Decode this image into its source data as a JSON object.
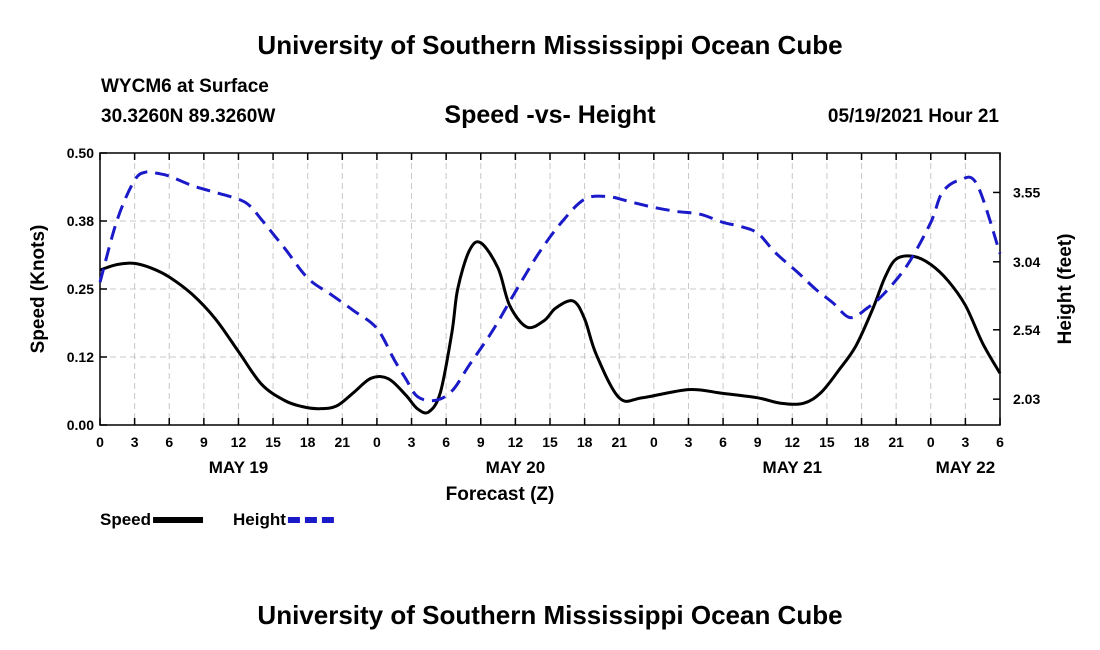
{
  "header": {
    "title_top": "University of Southern Mississippi Ocean Cube",
    "title_bottom": "University of Southern Mississippi Ocean Cube",
    "station": "WYCM6 at Surface",
    "coords": "30.3260N  89.3260W",
    "plot_title": "Speed -vs- Height",
    "datetime": "05/19/2021 Hour 21"
  },
  "chart_data": {
    "type": "line",
    "title": "Speed -vs- Height",
    "xlabel": "Forecast (Z)",
    "ylabel_left": "Speed (Knots)",
    "ylabel_right": "Height (feet)",
    "x_unit": "hours from May 19 00Z",
    "xlim": [
      0,
      78
    ],
    "ylim_left": [
      0,
      0.5
    ],
    "ylim_right": [
      1.84,
      3.84
    ],
    "x_ticks": [
      0,
      3,
      6,
      9,
      12,
      15,
      18,
      21,
      24,
      27,
      30,
      33,
      36,
      39,
      42,
      45,
      48,
      51,
      54,
      57,
      60,
      63,
      66,
      69,
      72,
      75,
      78
    ],
    "x_tick_labels": [
      "0",
      "3",
      "6",
      "9",
      "12",
      "15",
      "18",
      "21",
      "0",
      "3",
      "6",
      "9",
      "12",
      "15",
      "18",
      "21",
      "0",
      "3",
      "6",
      "9",
      "12",
      "15",
      "18",
      "21",
      "0",
      "3",
      "6"
    ],
    "day_labels": [
      {
        "x": 12,
        "label": "MAY 19"
      },
      {
        "x": 36,
        "label": "MAY 20"
      },
      {
        "x": 60,
        "label": "MAY 21"
      },
      {
        "x": 75,
        "label": "MAY 22"
      }
    ],
    "y_left_ticks": [
      {
        "value": 0.0,
        "label": "0.00"
      },
      {
        "value": 0.125,
        "label": "0.12"
      },
      {
        "value": 0.25,
        "label": "0.25"
      },
      {
        "value": 0.375,
        "label": "0.38"
      },
      {
        "value": 0.5,
        "label": "0.50"
      }
    ],
    "y_right_ticks": [
      {
        "value": 2.03,
        "label": "2.03"
      },
      {
        "value": 2.54,
        "label": "2.54"
      },
      {
        "value": 3.04,
        "label": "3.04"
      },
      {
        "value": 3.55,
        "label": "3.55"
      }
    ],
    "series": [
      {
        "name": "Speed",
        "axis": "left",
        "color": "#000000",
        "dash": "solid",
        "x": [
          0,
          1.5,
          3,
          4.5,
          6,
          8,
          10,
          12,
          14,
          16,
          17.5,
          19,
          20.5,
          22,
          23.5,
          25,
          26.5,
          27.5,
          28.5,
          29.5,
          30.5,
          31,
          32,
          33,
          34.5,
          35.5,
          37,
          38.5,
          39.5,
          41,
          42,
          43,
          45,
          47,
          51,
          54,
          57,
          59,
          61,
          62.5,
          64,
          65.5,
          67,
          68,
          69,
          70.5,
          72,
          73.5,
          75,
          76.5,
          78
        ],
        "values": [
          0.285,
          0.295,
          0.297,
          0.288,
          0.272,
          0.24,
          0.195,
          0.135,
          0.075,
          0.045,
          0.034,
          0.03,
          0.035,
          0.06,
          0.086,
          0.085,
          0.055,
          0.03,
          0.024,
          0.06,
          0.17,
          0.25,
          0.32,
          0.335,
          0.288,
          0.22,
          0.18,
          0.192,
          0.215,
          0.228,
          0.195,
          0.13,
          0.05,
          0.05,
          0.065,
          0.058,
          0.05,
          0.04,
          0.04,
          0.06,
          0.1,
          0.145,
          0.215,
          0.27,
          0.305,
          0.31,
          0.295,
          0.265,
          0.22,
          0.15,
          0.095
        ]
      },
      {
        "name": "Height",
        "axis": "right",
        "color": "#1a1ac8",
        "dash": "dashed",
        "x": [
          0,
          1.5,
          3,
          4,
          5,
          6,
          8,
          10,
          12,
          13,
          14,
          16,
          18,
          20,
          22,
          24,
          25.5,
          26.5,
          27.5,
          29,
          30.5,
          32,
          34,
          36,
          38,
          40,
          42,
          44,
          46,
          48,
          50,
          52,
          54,
          55.5,
          57,
          58.5,
          60.5,
          62,
          63.5,
          65,
          66.5,
          68,
          70,
          72,
          73,
          74.5,
          76,
          78
        ],
        "values": [
          2.89,
          3.35,
          3.64,
          3.7,
          3.69,
          3.67,
          3.6,
          3.55,
          3.5,
          3.45,
          3.35,
          3.14,
          2.92,
          2.8,
          2.68,
          2.55,
          2.32,
          2.18,
          2.05,
          2.02,
          2.09,
          2.28,
          2.53,
          2.82,
          3.1,
          3.33,
          3.5,
          3.52,
          3.48,
          3.44,
          3.41,
          3.39,
          3.33,
          3.3,
          3.25,
          3.11,
          2.96,
          2.84,
          2.74,
          2.63,
          2.7,
          2.81,
          3.02,
          3.33,
          3.55,
          3.64,
          3.61,
          3.1
        ]
      }
    ],
    "legend": [
      {
        "label": "Speed",
        "color": "#000000",
        "dash": "solid"
      },
      {
        "label": "Height",
        "color": "#1a1ac8",
        "dash": "dashed"
      }
    ],
    "legend_position": "bottom-left",
    "grid": true
  }
}
